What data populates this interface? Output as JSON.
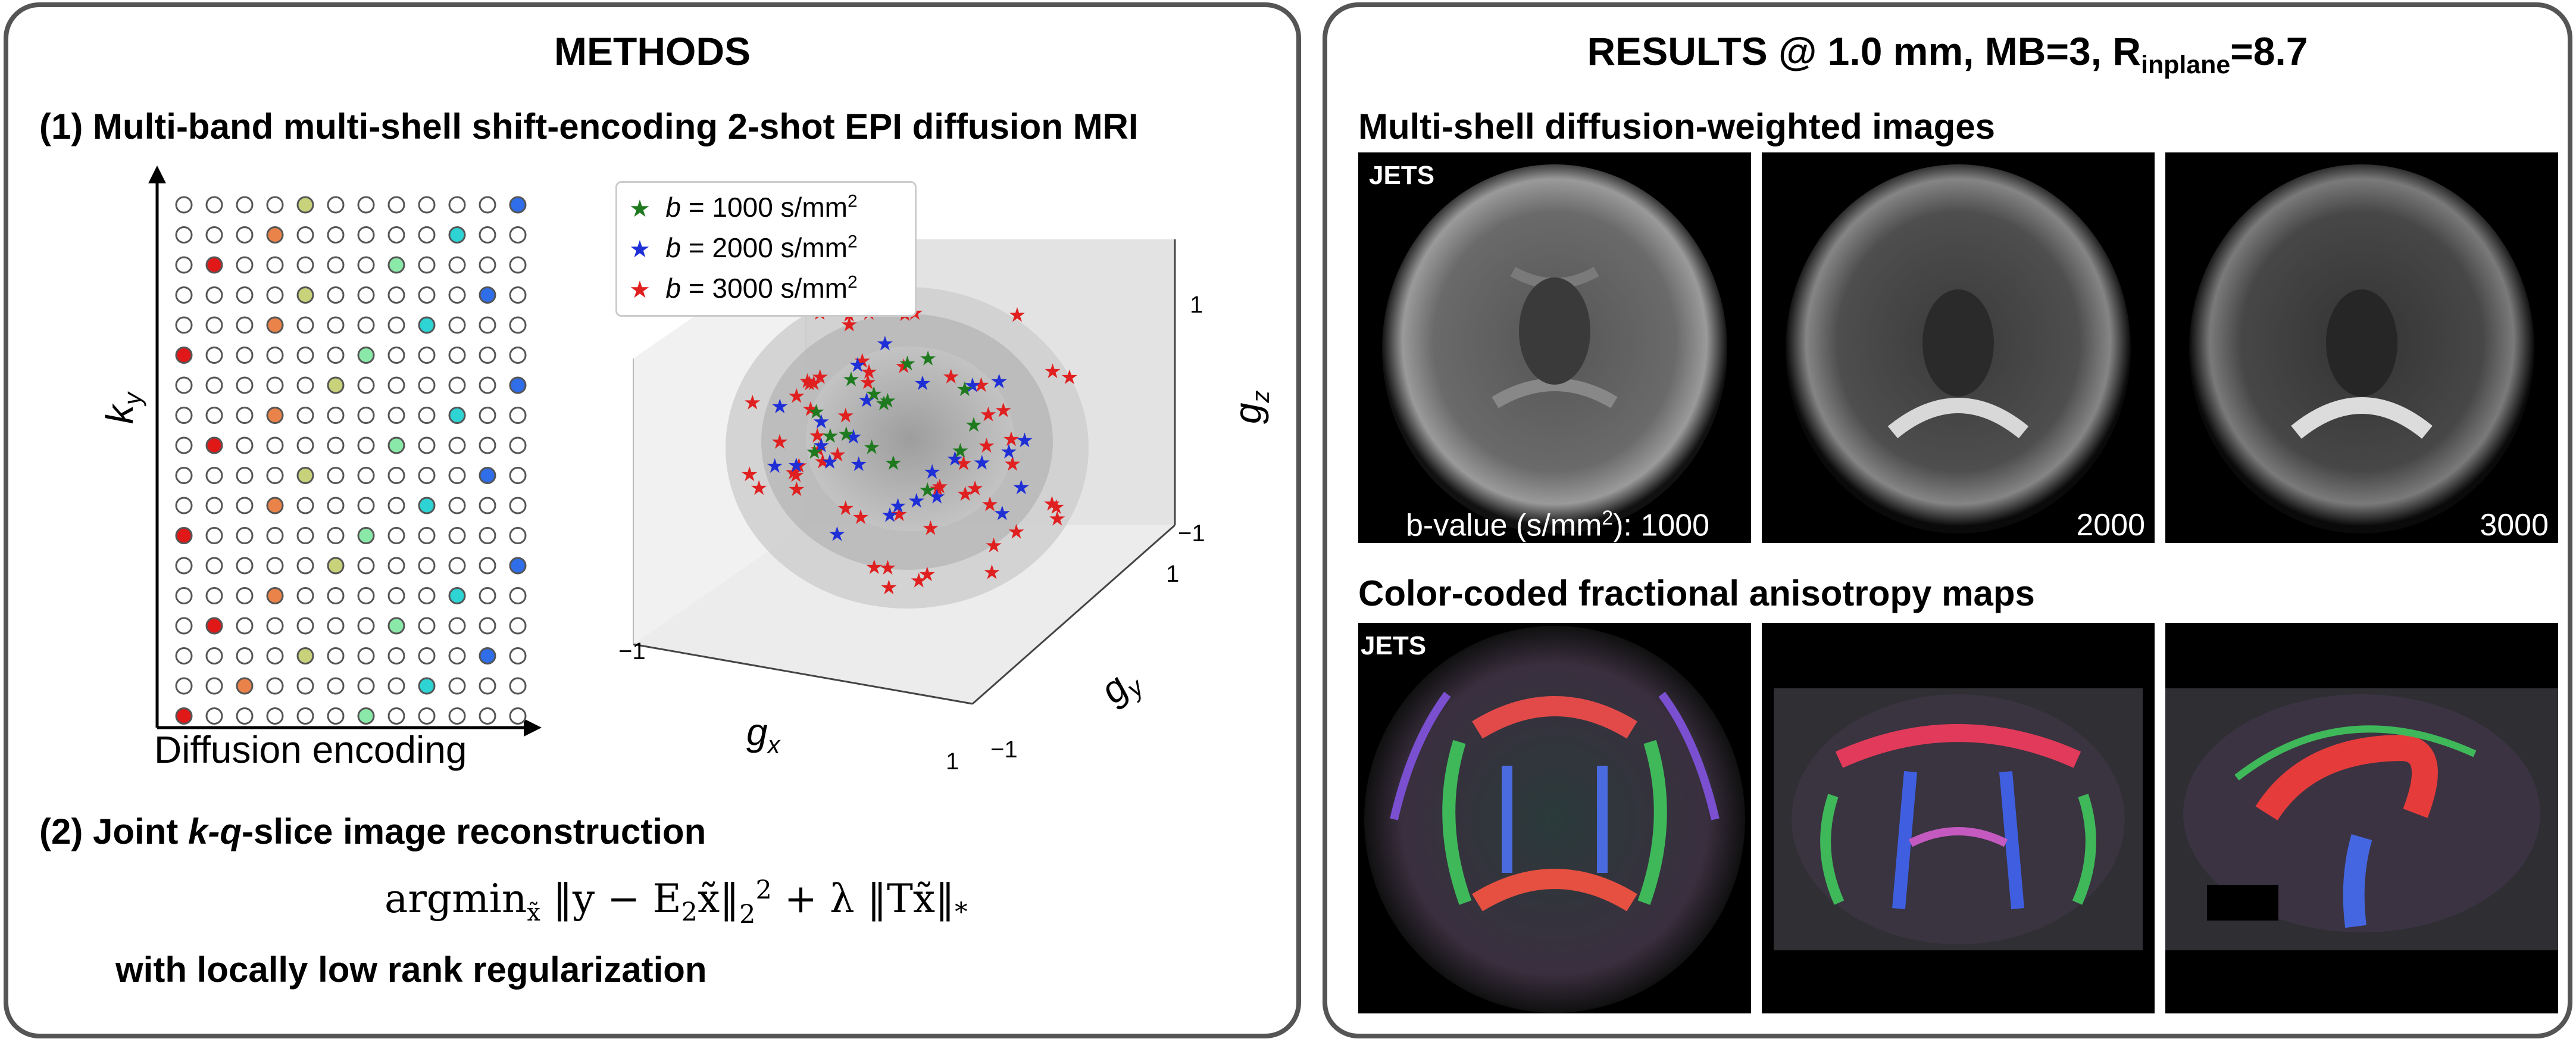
{
  "methods": {
    "title": "METHODS",
    "section1": "(1) Multi-band multi-shell shift-encoding 2-shot EPI diffusion MRI",
    "ky_label": "k",
    "ky_sub": "y",
    "diffusion_encoding_label": "Diffusion encoding",
    "legend": [
      {
        "prefix": "b",
        "text": " = 1000 s/mm",
        "sup": "2",
        "color": "#1f7a1f"
      },
      {
        "prefix": "b",
        "text": " = 2000 s/mm",
        "sup": "2",
        "color": "#1f2fd6"
      },
      {
        "prefix": "b",
        "text": " = 3000 s/mm",
        "sup": "2",
        "color": "#e02020"
      }
    ],
    "axes3d": {
      "gx": "g",
      "gx_sub": "x",
      "gy": "g",
      "gy_sub": "y",
      "gz": "g",
      "gz_sub": "z",
      "ticks": {
        "z_top": "1",
        "z_bottom": "−1",
        "x_left": "−1",
        "x_right": "1",
        "y_front": "1",
        "y_back": "−1"
      }
    },
    "section2_prefix": "(2) Joint ",
    "section2_italic": "k-q",
    "section2_suffix": "-slice image reconstruction",
    "formula": "argmin‸ ‖y − E₂x̃‖₂² + λ ‖Tx̃‖*",
    "formula_parts": {
      "op": "argmin",
      "sub": "x̃",
      "body1": " ‖y − E",
      "e_sub": "2",
      "body2": "x̃‖",
      "n_sub": "2",
      "n_sup": "2",
      "body3": " + λ ‖Tx̃‖",
      "star": "*"
    },
    "section3": "with locally low rank regularization",
    "dot_colors": {
      "red": "#e01818",
      "orange": "#e9834a",
      "olive": "#c8d27a",
      "mint": "#8ae8a8",
      "cyan": "#2ed3d3",
      "blue": "#2f6ee8"
    }
  },
  "results": {
    "title_prefix": "RESULTS @ 1.0 mm, MB=3, R",
    "title_sub": "inplane",
    "title_suffix": "=8.7",
    "dwi_heading": "Multi-shell diffusion-weighted images",
    "fa_heading": "Color-coded fractional anisotropy maps",
    "jets_label": "JETS",
    "bvalue_label_prefix": "b-value (s/mm",
    "bvalue_label_sup": "2",
    "bvalue_label_suffix": "): 1000",
    "bvalue_2": "2000",
    "bvalue_3": "3000"
  }
}
